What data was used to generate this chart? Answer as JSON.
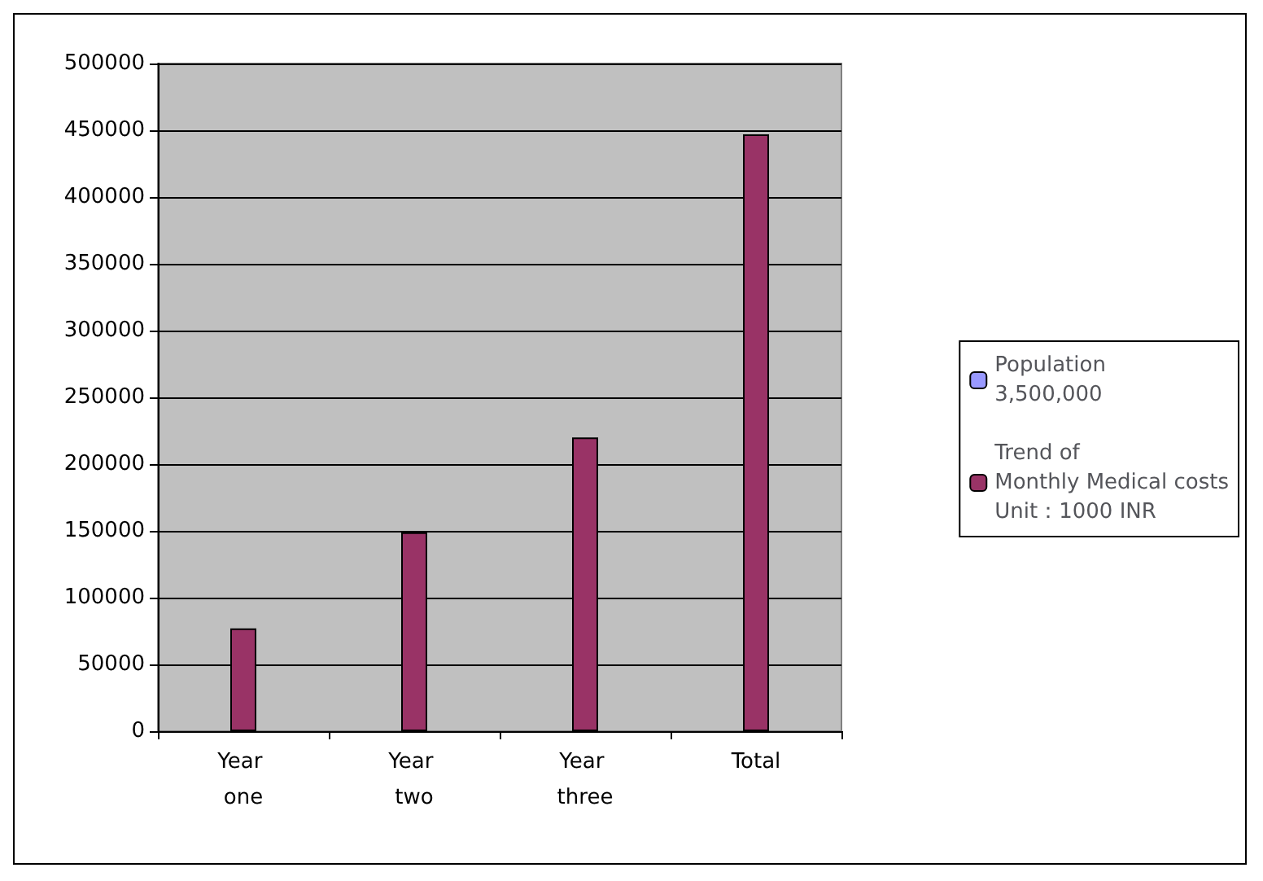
{
  "chart_data": {
    "type": "bar",
    "categories": [
      "Year one",
      "Year two",
      "Year three",
      "Total"
    ],
    "series": [
      {
        "name": "Population\n3,500,000",
        "color": "#9999ff",
        "values": [
          null,
          null,
          null,
          null
        ]
      },
      {
        "name": "Trend of\nMonthly Medical costs\nUnit：1000 INR",
        "color": "#993366",
        "values": [
          77000,
          149000,
          220000,
          447000
        ]
      }
    ],
    "ylim": [
      0,
      500000
    ],
    "yticks": [
      0,
      50000,
      100000,
      150000,
      200000,
      250000,
      300000,
      350000,
      400000,
      450000,
      500000
    ],
    "grid": "y",
    "legend": "right"
  }
}
